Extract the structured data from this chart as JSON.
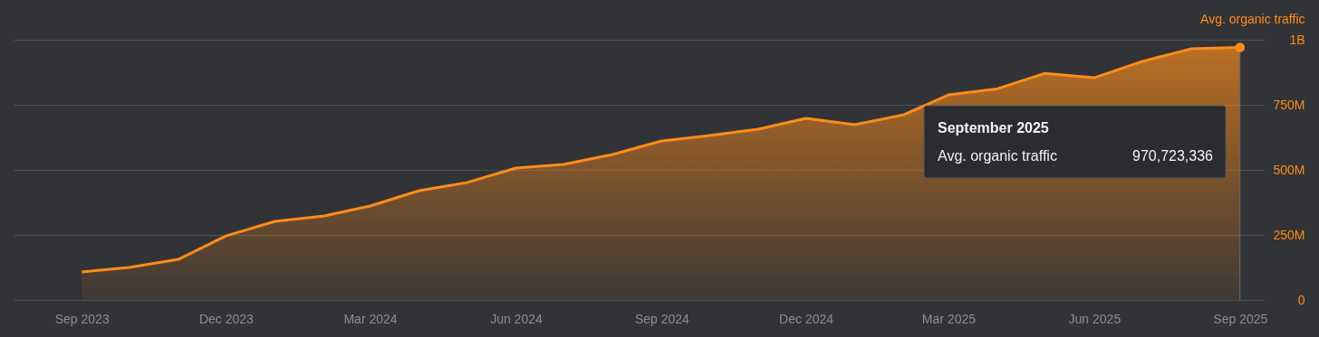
{
  "chart_data": {
    "type": "area",
    "ylabel": "Avg. organic traffic",
    "x": [
      "2023-09",
      "2023-10",
      "2023-11",
      "2023-12",
      "2024-01",
      "2024-02",
      "2024-03",
      "2024-04",
      "2024-05",
      "2024-06",
      "2024-07",
      "2024-08",
      "2024-09",
      "2024-10",
      "2024-11",
      "2024-12",
      "2025-01",
      "2025-02",
      "2025-03",
      "2025-04",
      "2025-05",
      "2025-06",
      "2025-07",
      "2025-08",
      "2025-09"
    ],
    "series": [
      {
        "color": "#ff8c1a",
        "values": [
          108000000,
          125000000,
          156000000,
          246000000,
          302000000,
          323000000,
          361000000,
          420000000,
          451000000,
          507000000,
          521000000,
          559000000,
          611000000,
          632000000,
          656000000,
          698000000,
          674000000,
          712000000,
          788000000,
          812000000,
          871000000,
          854000000,
          916000000,
          965000000,
          970723336
        ]
      }
    ],
    "xlim": [
      "2023-07-20",
      "2025-09-16"
    ],
    "xticks": [
      {
        "value": "2023-09",
        "label": "Sep 2023"
      },
      {
        "value": "2023-12",
        "label": "Dec 2023"
      },
      {
        "value": "2024-03",
        "label": "Mar 2024"
      },
      {
        "value": "2024-06",
        "label": "Jun 2024"
      },
      {
        "value": "2024-09",
        "label": "Sep 2024"
      },
      {
        "value": "2024-12",
        "label": "Dec 2024"
      },
      {
        "value": "2025-03",
        "label": "Mar 2025"
      },
      {
        "value": "2025-06",
        "label": "Jun 2025"
      },
      {
        "value": "2025-09",
        "label": "Sep 2025"
      }
    ],
    "ylim": [
      0,
      1000000000
    ],
    "yticks": [
      {
        "value": 0,
        "label": "0"
      },
      {
        "value": 250000000,
        "label": "250M"
      },
      {
        "value": 500000000,
        "label": "500M"
      },
      {
        "value": 750000000,
        "label": "750M"
      },
      {
        "value": 1000000000,
        "label": "1B"
      }
    ],
    "grid": "y",
    "ref_lines": [
      {
        "axis": "x",
        "value": "2025-09",
        "color": "#6a6b6f"
      }
    ],
    "annotations": [
      "September 2025",
      "Avg. organic traffic",
      "970,723,336"
    ]
  }
}
